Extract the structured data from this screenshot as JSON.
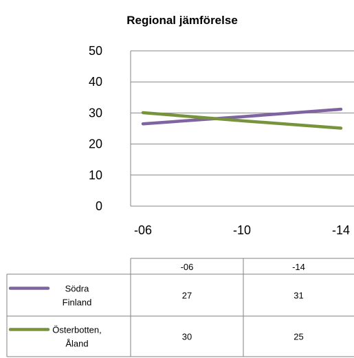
{
  "chart_data": {
    "type": "line",
    "title": "Regional jämförelse",
    "xlabel": "",
    "ylabel": "",
    "categories": [
      "-06",
      "-10",
      "-14"
    ],
    "ylim": [
      0,
      50
    ],
    "yticks": [
      0,
      10,
      20,
      30,
      40,
      50
    ],
    "grid": true,
    "legend": "data-table-below",
    "series": [
      {
        "name": "Södra Finland",
        "name_lines": [
          "Södra",
          "Finland"
        ],
        "color": "#8064a2",
        "values": [
          26.5,
          28.8,
          31.2
        ]
      },
      {
        "name": "Österbotten, Åland",
        "name_lines": [
          "Österbotten,",
          "Åland"
        ],
        "color": "#77933c",
        "values": [
          30.1,
          27.5,
          25.1
        ]
      }
    ],
    "data_table": {
      "columns": [
        "-06",
        "-14"
      ],
      "rows": [
        {
          "series": "Södra Finland",
          "values": [
            "27",
            "31"
          ]
        },
        {
          "series": "Österbotten, Åland",
          "values": [
            "30",
            "25"
          ]
        }
      ]
    }
  }
}
